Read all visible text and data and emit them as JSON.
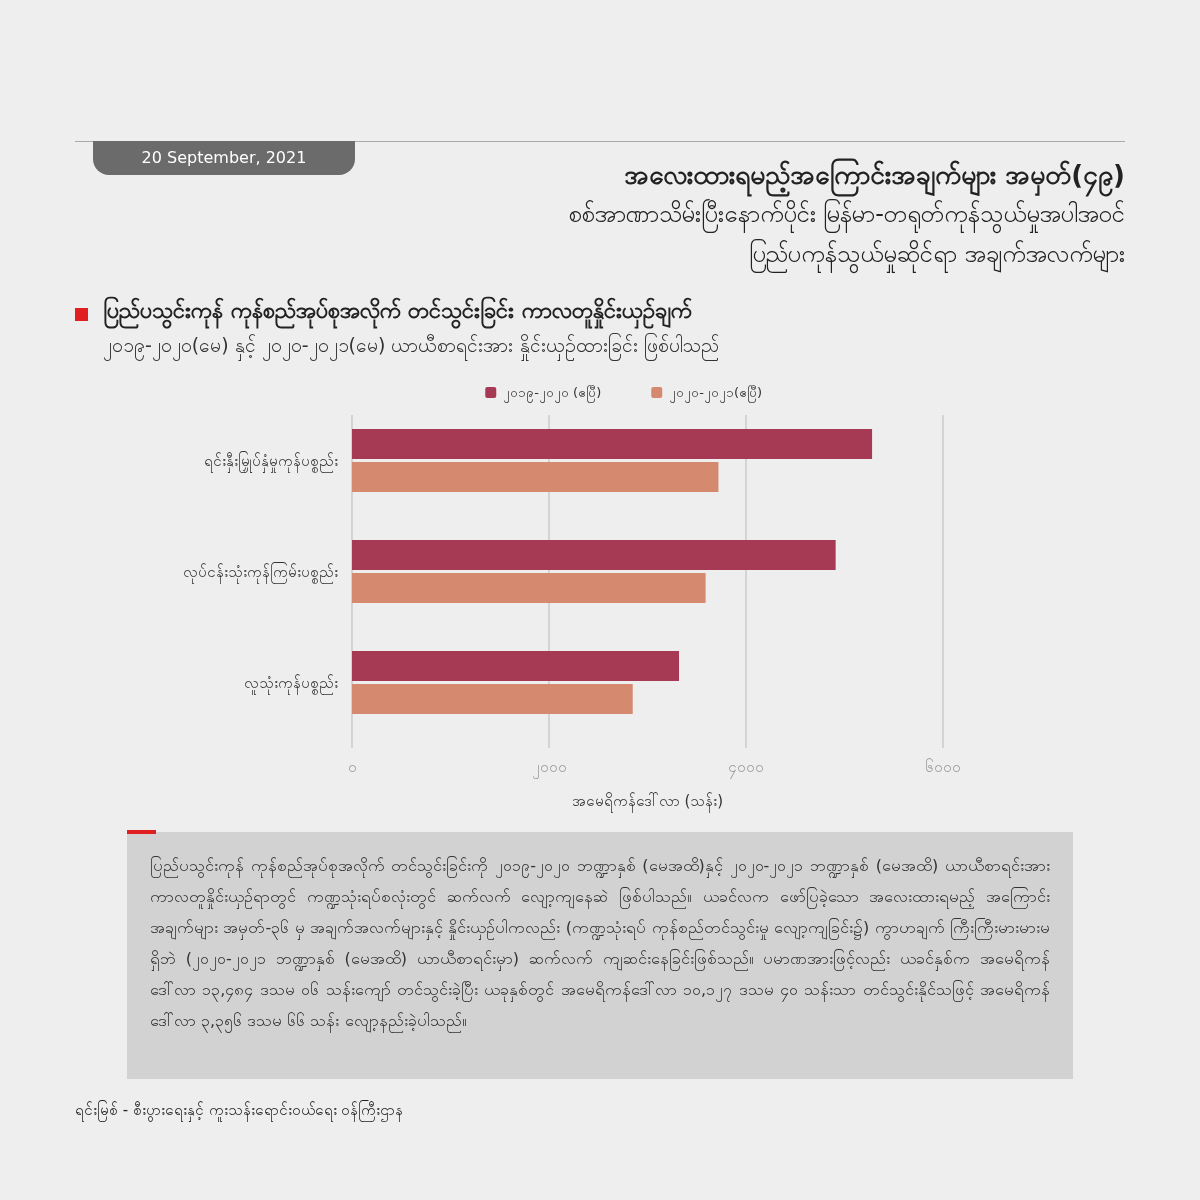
{
  "chart_data": {
    "type": "bar",
    "orientation": "horizontal",
    "title": "ပြည်ပသွင်းကုန် ကုန်စည်အုပ်စုအလိုက် တင်သွင်းခြင်း ကာလတူနှိုင်းယှဉ်ချက်",
    "subtitle": "၂၀၁၉-၂၀၂၀(မေ) နှင့် ၂၀၂၀-၂၀၂၁(မေ) ယာယီစာရင်းအား နှိုင်းယှဉ်ထားခြင်း ဖြစ်ပါသည်",
    "xlabel": "အမေရိကန်ဒေါ်လာ (သန်း)",
    "categories": [
      "ရင်းနှီးမြှုပ်နှံမှုကုန်ပစ္စည်း",
      "လုပ်ငန်းသုံးကုန်ကြမ်းပစ္စည်း",
      "လူသုံးကုန်ပစ္စည်း"
    ],
    "series": [
      {
        "name": "၂၀၁၉-၂၀၂၀ (ဧပြီ)",
        "color": "#a63a54",
        "values": [
          5280,
          4910,
          3320
        ]
      },
      {
        "name": "၂၀၂၀-၂၀၂၁(ဧပြီ)",
        "color": "#d58a70",
        "values": [
          3720,
          3590,
          2850
        ]
      }
    ],
    "xlim": [
      0,
      6000
    ],
    "xticks": [
      {
        "value": 0,
        "label": "၀"
      },
      {
        "value": 2000,
        "label": "၂၀၀၀"
      },
      {
        "value": 4000,
        "label": "၄၀၀၀"
      },
      {
        "value": 6000,
        "label": "၆၀၀၀"
      }
    ],
    "grid": "x",
    "legend": "top",
    "annotations": [
      "20 September, 2021",
      "အလေးထားရမည့်အကြောင်းအချက်များ အမှတ်(၄၉)",
      "စစ်အာဏာသိမ်းပြီးနောက်ပိုင်း မြန်မာ-တရုတ်ကုန်သွယ်မှုအပါအဝင်",
      "ပြည်ပကုန်သွယ်မှုဆိုင်ရာ အချက်အလက်များ",
      "ပြည်ပသွင်းကုန် ကုန်စည်အုပ်စုအလိုက် တင်သွင်းခြင်းကို ၂၀၁၉-၂၀၂၀ ဘဏ္ဍာနှစ် (မေအထိ)နှင့် ၂၀၂၀-၂၀၂၁ ဘဏ္ဍာနှစ် (မေအထိ) ယာယီစာရင်းအား ကာလတူနှိုင်းယှဉ်ရာတွင် ကဏ္ဍသုံးရပ်စလုံးတွင် ဆက်လက် လျော့ကျနေဆဲ ဖြစ်ပါသည်။ ယခင်လက ဖော်ပြခဲ့သော အလေးထားရမည့် အကြောင်း အချက်များ အမှတ်-၃၆ မှ အချက်အလက်များနှင့် နှိုင်းယှဉ်ပါကလည်း (ကဏ္ဍသုံးရပ် ကုန်စည်တင်သွင်းမှု လျော့ကျခြင်း၌) ကွာဟချက် ကြီးကြီးမားမားမရှိဘဲ (၂၀၂၀-၂၀၂၁ ဘဏ္ဍာနှစ် (မေအထိ) ယာယီစာရင်းမှာ) ဆက်လက် ကျဆင်းနေခြင်းဖြစ်သည်။ ပမာဏအားဖြင့်လည်း ယခင်နှစ်က အမေရိကန်ဒေါ်လာ ၁၃,၄၈၄ ဒသမ ၀၆ သန်းကျော် တင်သွင်းခဲ့ပြီး ယခုနှစ်တွင် အမေရိကန်ဒေါ်လာ ၁၀,၁၂၇ ဒသမ ၄၀ သန်းသာ တင်သွင်းနိုင်သဖြင့် အမေရိကန်ဒေါ်လာ ၃,၃၅၆ ဒသမ ၆၆ သန်း လျော့နည်းခဲ့ပါသည်။",
      "ရင်းမြစ် -    စီးပွားရေးနှင့် ကူးသန်းရောင်းဝယ်ရေး ဝန်ကြီးဌာန"
    ]
  }
}
